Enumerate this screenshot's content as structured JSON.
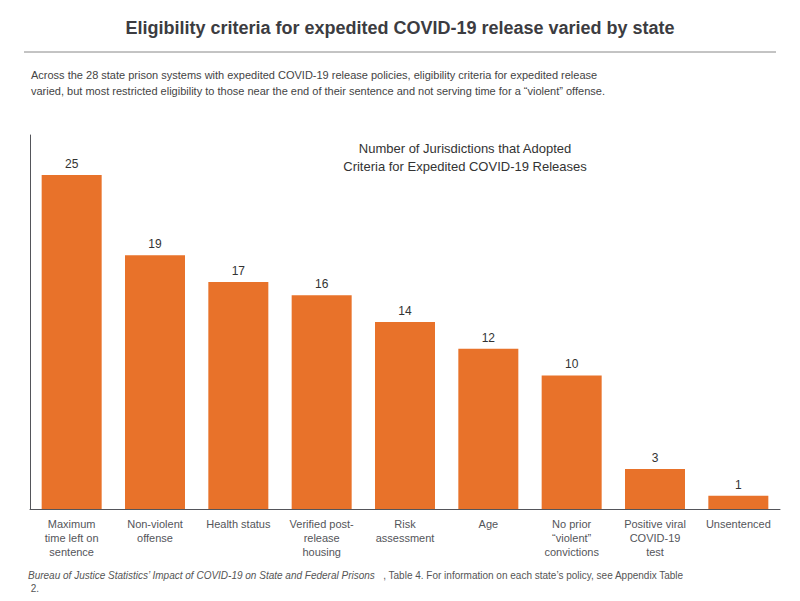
{
  "chart_data": {
    "type": "bar",
    "title": "Eligibility criteria for expedited COVID-19 release varied by state",
    "subtitle": [
      "Across the 28 state prison systems with expedited COVID-19 release policies, eligibility criteria for expedited release",
      "varied, but most restricted eligibility to those near the end of their sentence and not serving time for a “violent” offense."
    ],
    "annotations": [
      "Number of Jurisdictions that Adopted\nCriteria for Expedited COVID-19 Releases"
    ],
    "source": [
      "Bureau of Justice Statistics’ Impact of COVID-19 on State and Federal Prisons",
      ", Table 4. For information on each state’s policy, see Appendix Table 2."
    ],
    "categories": [
      "Maximum\ntime left on\nsentence",
      "Non-violent\noffense",
      "Health status",
      "Verified post-\nrelease\nhousing",
      "Risk\nassessment",
      "Age",
      "No prior\n“violent”\nconvictions",
      "Positive viral\nCOVID-19\ntest",
      "Unsentenced"
    ],
    "values": [
      25,
      19,
      17,
      16,
      14,
      12,
      10,
      3,
      1
    ],
    "color": "#E8722A",
    "ylim": [
      0,
      28
    ],
    "grid": false,
    "data_labels": true,
    "tick_labels": "x"
  }
}
